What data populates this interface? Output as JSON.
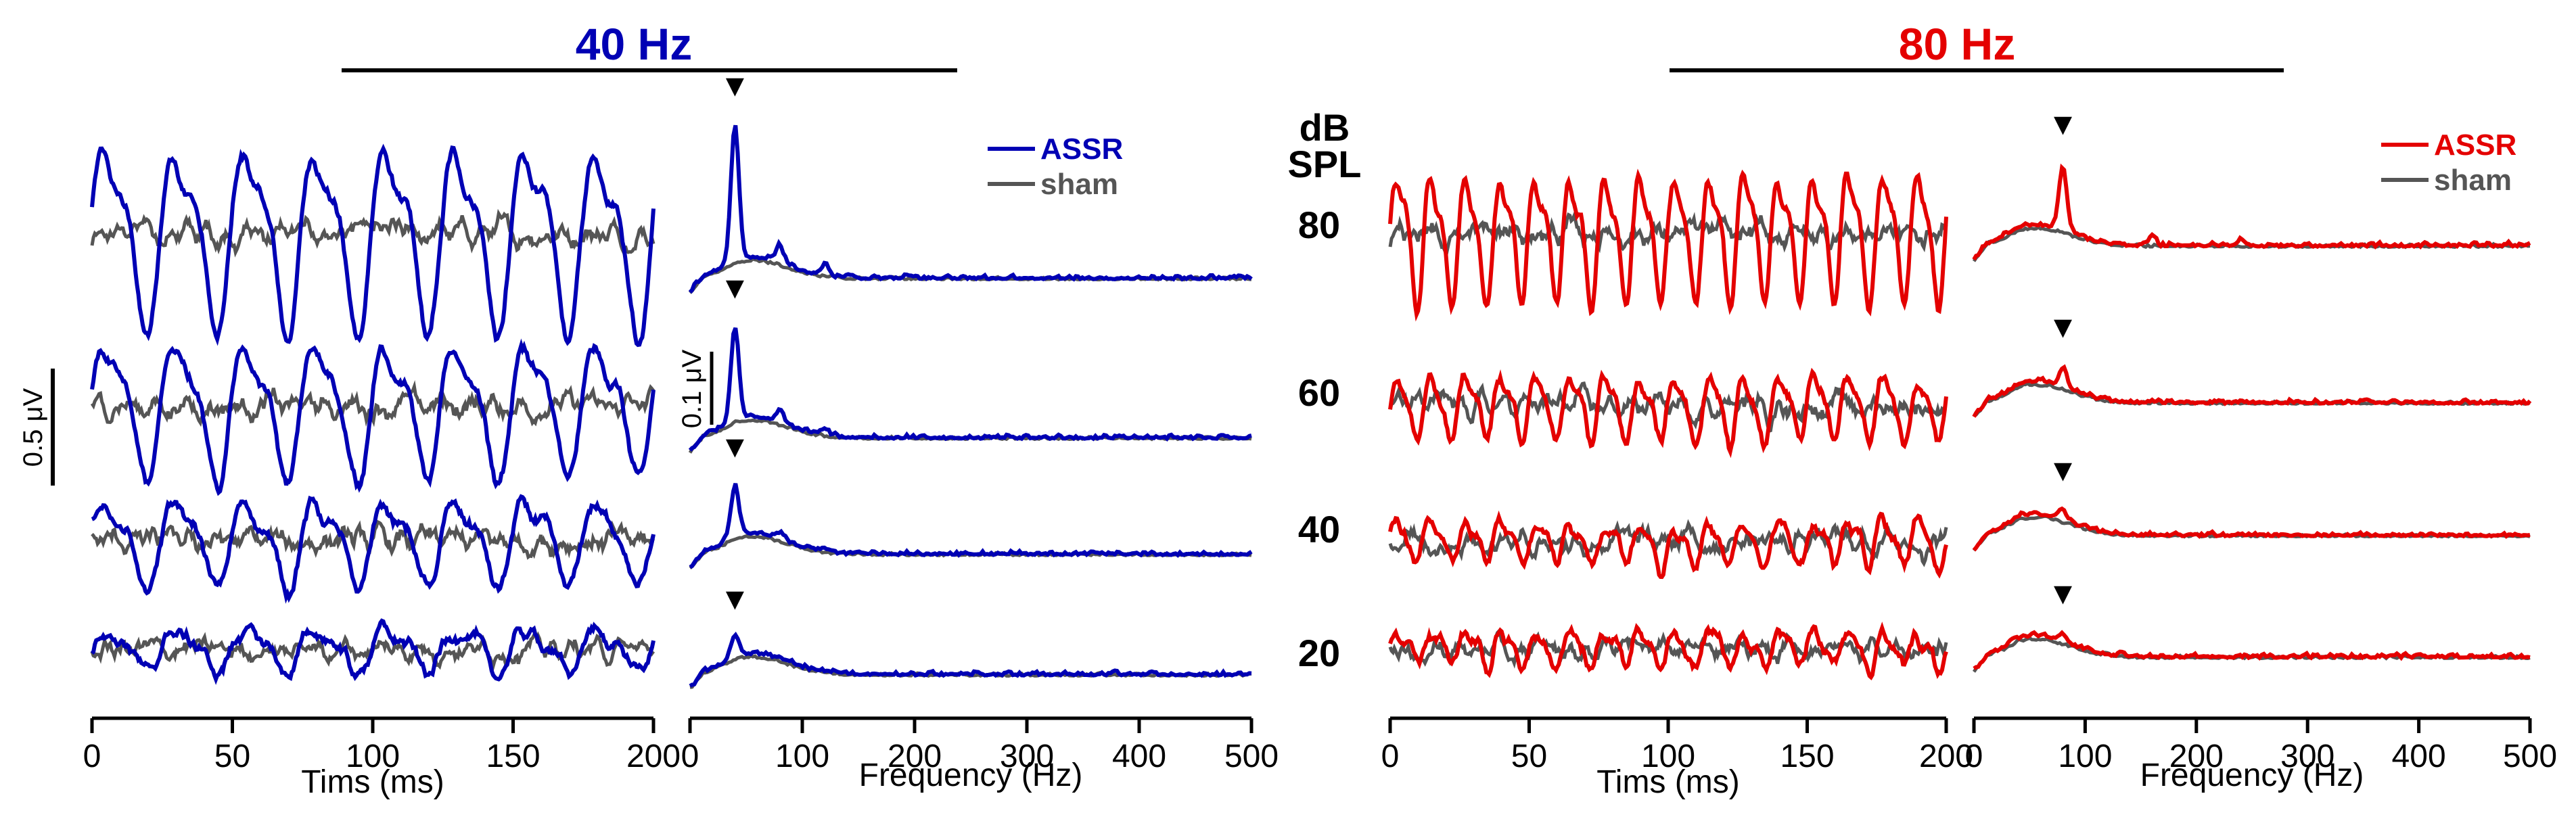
{
  "chart_data": {
    "type": "line",
    "panels": [
      {
        "key": "hz40",
        "title": "40 Hz",
        "color": "#0000b4",
        "stim_hz": 40,
        "peak_dot": "▼"
      },
      {
        "key": "hz80",
        "title": "80 Hz",
        "color": "#e40000",
        "stim_hz": 80,
        "peak_dot": "▼"
      }
    ],
    "levels_header": "dB SPL",
    "levels_header_lines": [
      "dB",
      "SPL"
    ],
    "levels": [
      {
        "label": "80",
        "value": 80,
        "assr_amp_40": 0.26,
        "assr_amp_80": 0.18,
        "spec_peak_40": 0.19,
        "spec_peak_80": 0.09,
        "sham_amp": 0.06
      },
      {
        "label": "60",
        "value": 60,
        "assr_amp_40": 0.19,
        "assr_amp_80": 0.09,
        "spec_peak_40": 0.13,
        "spec_peak_80": 0.025,
        "sham_amp": 0.06
      },
      {
        "label": "40",
        "value": 40,
        "assr_amp_40": 0.12,
        "assr_amp_80": 0.06,
        "spec_peak_40": 0.07,
        "spec_peak_80": 0.01,
        "sham_amp": 0.06
      },
      {
        "label": "20",
        "value": 20,
        "assr_amp_40": 0.06,
        "assr_amp_80": 0.05,
        "spec_peak_40": 0.025,
        "spec_peak_80": 0.008,
        "sham_amp": 0.05
      }
    ],
    "time_axis": {
      "label": "Tims (ms)",
      "range": [
        0,
        200
      ],
      "ticks": [
        "0",
        "50",
        "100",
        "150",
        "200"
      ]
    },
    "freq_axis": {
      "label": "Frequency (Hz)",
      "range": [
        0,
        500
      ],
      "ticks": [
        "0",
        "100",
        "200",
        "300",
        "400",
        "500"
      ]
    },
    "legend": [
      {
        "name": "ASSR",
        "role": "stimulus"
      },
      {
        "name": "sham",
        "color": "#555555",
        "role": "control"
      }
    ],
    "scale_bars": {
      "waveform": "0.5 μV",
      "spectrum": "0.1 μV"
    }
  }
}
